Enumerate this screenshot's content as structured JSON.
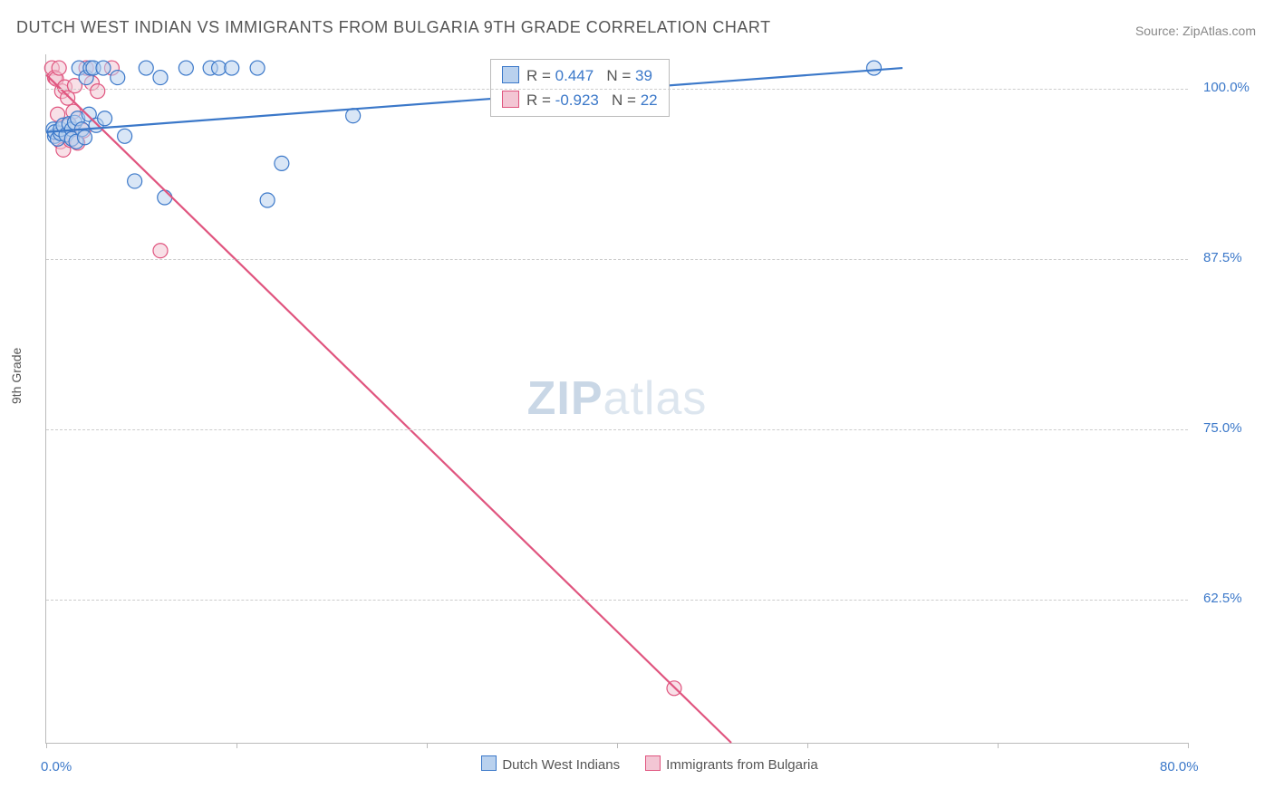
{
  "title": "DUTCH WEST INDIAN VS IMMIGRANTS FROM BULGARIA 9TH GRADE CORRELATION CHART",
  "source_label": "Source: ",
  "source_name": "ZipAtlas.com",
  "ylabel": "9th Grade",
  "watermark_zip": "ZIP",
  "watermark_atlas": "atlas",
  "chart": {
    "type": "scatter",
    "x_range": [
      0.0,
      80.0
    ],
    "y_range": [
      52.0,
      102.5
    ],
    "y_ticks": [
      62.5,
      75.0,
      87.5,
      100.0
    ],
    "y_tick_labels": [
      "62.5%",
      "75.0%",
      "87.5%",
      "100.0%"
    ],
    "x_ticks": [
      0.0,
      13.33,
      26.67,
      40.0,
      53.33,
      66.67,
      80.0
    ],
    "x_tick_labels": {
      "first": "0.0%",
      "last": "80.0%"
    },
    "grid_color": "#cccccc",
    "axis_color": "#bbbbbb",
    "background": "#ffffff",
    "marker_radius": 8,
    "marker_opacity": 0.55,
    "line_width": 2.2,
    "series": [
      {
        "key": "dutch",
        "label": "Dutch West Indians",
        "color": "#3b78c9",
        "fill": "#b9d1ee",
        "R": "0.447",
        "N": "39",
        "trend": {
          "x1": 0.0,
          "y1": 96.8,
          "x2": 60.0,
          "y2": 101.5
        },
        "points": [
          [
            0.5,
            97.0
          ],
          [
            0.6,
            96.5
          ],
          [
            0.6,
            96.8
          ],
          [
            0.8,
            96.3
          ],
          [
            1.0,
            96.7
          ],
          [
            1.0,
            97.0
          ],
          [
            1.2,
            97.3
          ],
          [
            1.4,
            96.6
          ],
          [
            1.6,
            97.4
          ],
          [
            1.8,
            97.0
          ],
          [
            1.8,
            96.3
          ],
          [
            2.0,
            97.5
          ],
          [
            2.1,
            96.1
          ],
          [
            2.2,
            97.8
          ],
          [
            2.3,
            101.5
          ],
          [
            2.5,
            97.0
          ],
          [
            2.7,
            96.4
          ],
          [
            2.8,
            100.8
          ],
          [
            3.0,
            98.1
          ],
          [
            3.1,
            101.5
          ],
          [
            3.3,
            101.5
          ],
          [
            3.5,
            97.3
          ],
          [
            4.0,
            101.5
          ],
          [
            4.1,
            97.8
          ],
          [
            5.0,
            100.8
          ],
          [
            5.5,
            96.5
          ],
          [
            6.2,
            93.2
          ],
          [
            7.0,
            101.5
          ],
          [
            8.0,
            100.8
          ],
          [
            8.3,
            92.0
          ],
          [
            9.8,
            101.5
          ],
          [
            11.5,
            101.5
          ],
          [
            12.1,
            101.5
          ],
          [
            13.0,
            101.5
          ],
          [
            14.8,
            101.5
          ],
          [
            15.5,
            91.8
          ],
          [
            16.5,
            94.5
          ],
          [
            21.5,
            98.0
          ],
          [
            58.0,
            101.5
          ]
        ]
      },
      {
        "key": "bulgaria",
        "label": "Immigrants from Bulgaria",
        "color": "#e0557f",
        "fill": "#f3c6d4",
        "R": "-0.923",
        "N": "22",
        "trend": {
          "x1": 0.0,
          "y1": 101.0,
          "x2": 48.0,
          "y2": 52.0
        },
        "points": [
          [
            0.4,
            101.5
          ],
          [
            0.6,
            100.8
          ],
          [
            0.7,
            100.7
          ],
          [
            0.8,
            98.1
          ],
          [
            0.9,
            101.5
          ],
          [
            1.0,
            96.1
          ],
          [
            1.1,
            99.8
          ],
          [
            1.2,
            95.5
          ],
          [
            1.3,
            100.1
          ],
          [
            1.5,
            99.3
          ],
          [
            1.6,
            97.3
          ],
          [
            1.7,
            96.2
          ],
          [
            1.9,
            98.3
          ],
          [
            2.0,
            100.2
          ],
          [
            2.2,
            96.0
          ],
          [
            2.6,
            96.9
          ],
          [
            2.8,
            101.5
          ],
          [
            3.2,
            100.4
          ],
          [
            3.6,
            99.8
          ],
          [
            4.6,
            101.5
          ],
          [
            8.0,
            88.1
          ],
          [
            44.0,
            56.0
          ]
        ]
      }
    ]
  },
  "stats_box": {
    "R_label": "R  =  ",
    "N_label": "N  =  "
  }
}
